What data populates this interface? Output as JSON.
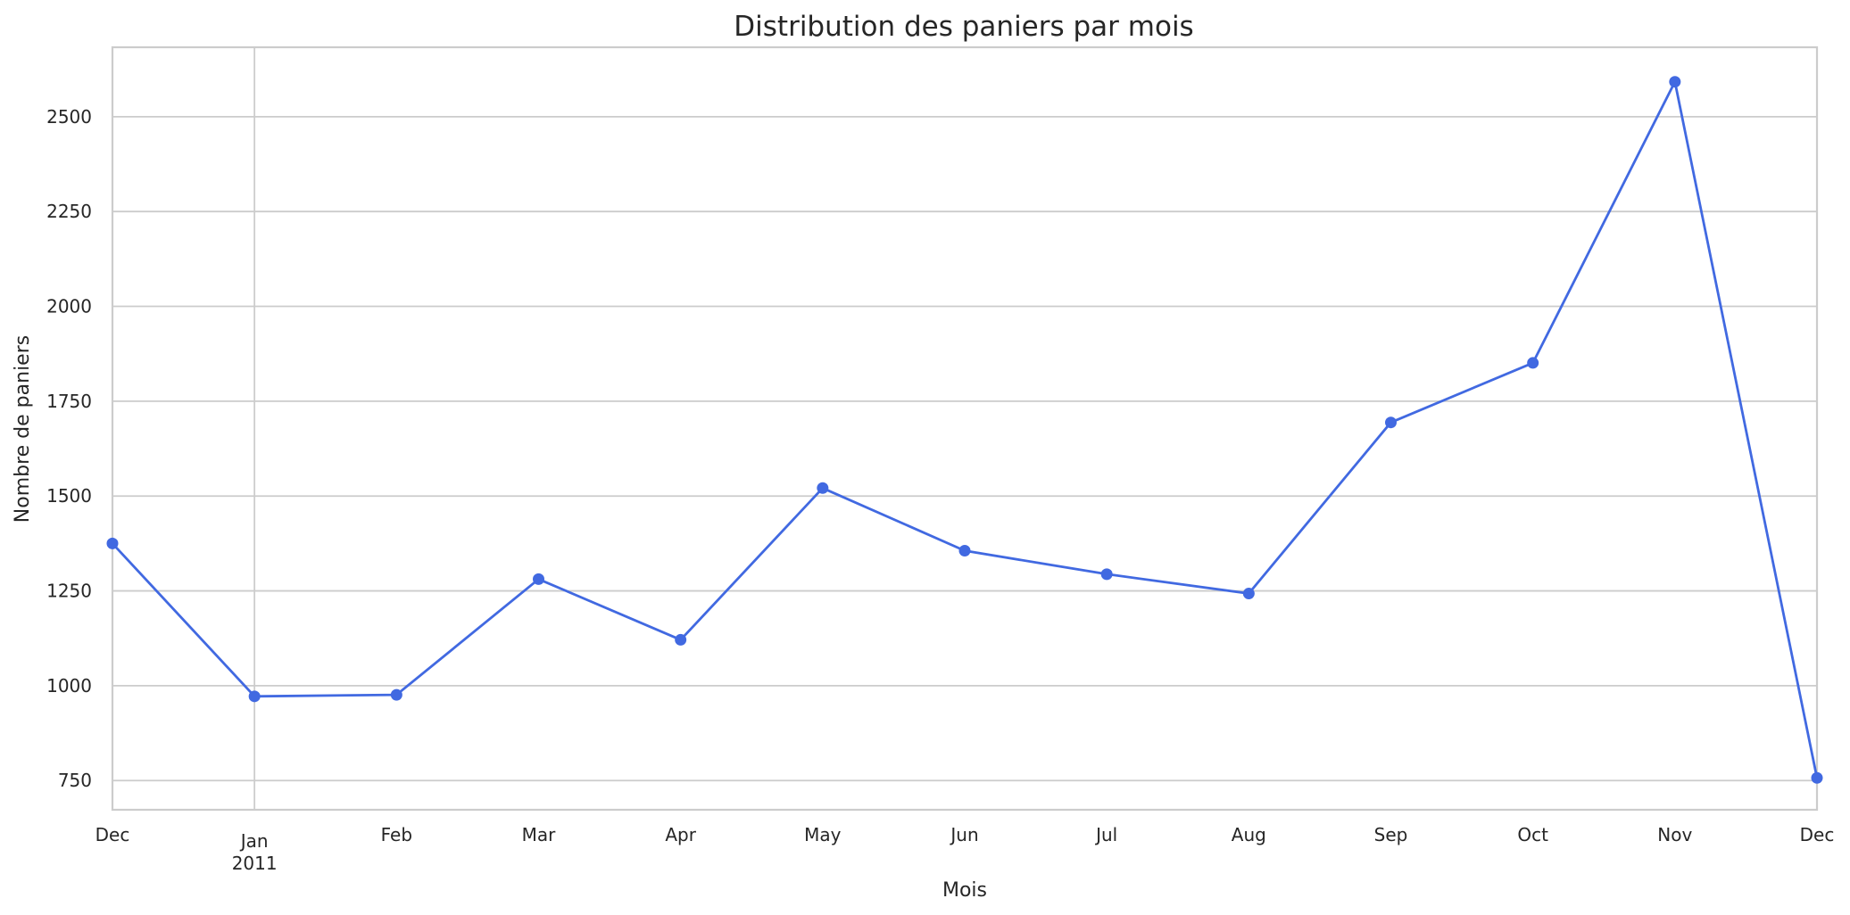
{
  "chart_data": {
    "type": "line",
    "title": "Distribution des paniers par mois",
    "xlabel": "Mois",
    "ylabel": "Nombre de paniers",
    "categories": [
      "Dec 2010",
      "Jan 2011",
      "Feb 2011",
      "Mar 2011",
      "Apr 2011",
      "May 2011",
      "Jun 2011",
      "Jul 2011",
      "Aug 2011",
      "Sep 2011",
      "Oct 2011",
      "Nov 2011",
      "Dec 2011"
    ],
    "x_tick_labels": [
      {
        "label": "Dec",
        "sub": ""
      },
      {
        "label": "Jan",
        "sub": "2011"
      },
      {
        "label": "Feb",
        "sub": ""
      },
      {
        "label": "Mar",
        "sub": ""
      },
      {
        "label": "Apr",
        "sub": ""
      },
      {
        "label": "May",
        "sub": ""
      },
      {
        "label": "Jun",
        "sub": ""
      },
      {
        "label": "Jul",
        "sub": ""
      },
      {
        "label": "Aug",
        "sub": ""
      },
      {
        "label": "Sep",
        "sub": ""
      },
      {
        "label": "Oct",
        "sub": ""
      },
      {
        "label": "Nov",
        "sub": ""
      },
      {
        "label": "Dec",
        "sub": ""
      }
    ],
    "series": [
      {
        "name": "Nombre de paniers",
        "color": "#4169E1",
        "marker": "circle",
        "values": [
          1375,
          972,
          976,
          1281,
          1121,
          1521,
          1356,
          1294,
          1243,
          1694,
          1851,
          2592,
          757
        ]
      }
    ],
    "y_ticks": [
      750,
      1000,
      1250,
      1500,
      1750,
      2000,
      2250,
      2500
    ],
    "ylim": [
      673,
      2683
    ],
    "x_major_gridlines": [
      "Jan 2011"
    ],
    "grid": true,
    "legend": null
  },
  "colors": {
    "grid": "#cccccc",
    "text": "#262626",
    "background": "#ffffff"
  }
}
